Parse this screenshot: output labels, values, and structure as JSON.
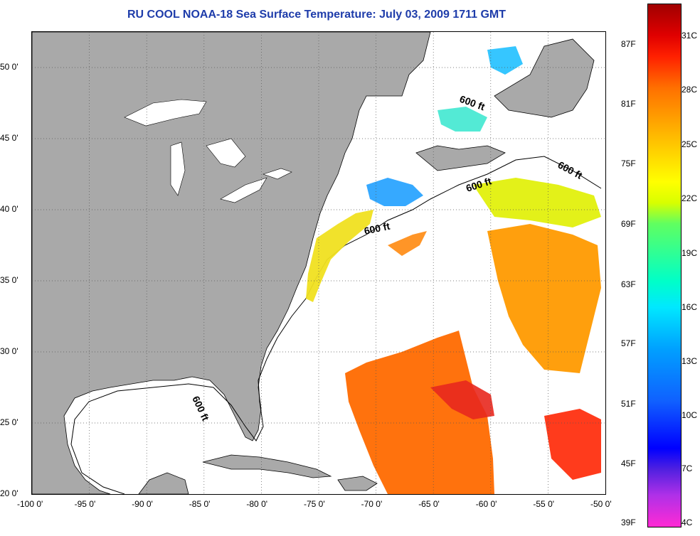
{
  "title": "RU COOL  NOAA-18  Sea Surface Temperature:  July 03, 2009 1711 GMT",
  "map": {
    "lon_min": -100,
    "lon_max": -50,
    "lat_min": 20,
    "lat_max": 52.5,
    "lon_ticks": [
      {
        "value": -100,
        "label": "-100 0'"
      },
      {
        "value": -95,
        "label": "-95 0'"
      },
      {
        "value": -90,
        "label": "-90 0'"
      },
      {
        "value": -85,
        "label": "-85 0'"
      },
      {
        "value": -80,
        "label": "-80 0'"
      },
      {
        "value": -75,
        "label": "-75 0'"
      },
      {
        "value": -70,
        "label": "-70 0'"
      },
      {
        "value": -65,
        "label": "-65 0'"
      },
      {
        "value": -60,
        "label": "-60 0'"
      },
      {
        "value": -55,
        "label": "-55 0'"
      },
      {
        "value": -50,
        "label": "-50 0'"
      }
    ],
    "lat_ticks": [
      {
        "value": 20,
        "label": "20 0'"
      },
      {
        "value": 25,
        "label": "25 0'"
      },
      {
        "value": 30,
        "label": "30 0'"
      },
      {
        "value": 35,
        "label": "35 0'"
      },
      {
        "value": 40,
        "label": "40 0'"
      },
      {
        "value": 45,
        "label": "45 0'"
      },
      {
        "value": 50,
        "label": "50 0'"
      }
    ],
    "isobath_labels": [
      {
        "text": "600 ft"
      },
      {
        "text": "600 ft"
      },
      {
        "text": "600 ft"
      },
      {
        "text": "600 ft"
      },
      {
        "text": "600 ft"
      }
    ],
    "colors": {
      "land": "#a9a9a9",
      "ocean": "#ffffff",
      "grid": "#555555",
      "title": "#1e3caa"
    }
  },
  "colorbar": {
    "fahrenheit": [
      "87F",
      "81F",
      "75F",
      "69F",
      "63F",
      "57F",
      "51F",
      "45F",
      "39F"
    ],
    "celsius": [
      "31C",
      "28C",
      "25C",
      "22C",
      "19C",
      "16C",
      "13C",
      "10C",
      "7C",
      "4C"
    ]
  }
}
